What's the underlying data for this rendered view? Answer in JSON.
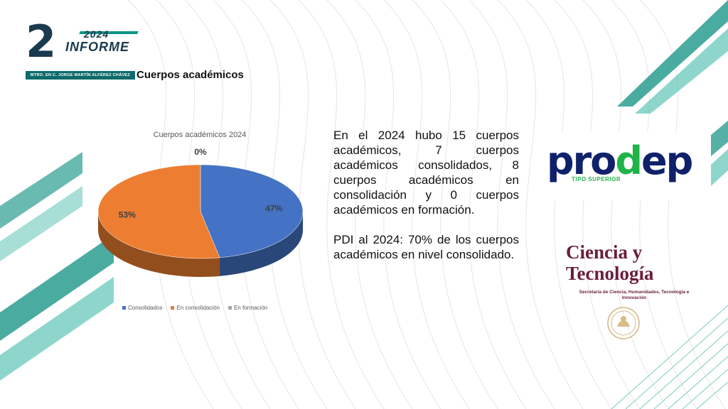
{
  "header": {
    "logo_number": "2",
    "logo_year": "2024",
    "logo_word": "INFORME",
    "logo_subtitle": "MTRO. EN C. JORGE MARTÍN ALFÉREZ CHÁVEZ",
    "section_title": "Cuerpos académicos"
  },
  "chart_data": {
    "type": "pie",
    "style": "3d",
    "title": "Cuerpos académicos 2024",
    "categories": [
      "Consolidados",
      "En consolidación",
      "En formación"
    ],
    "values": [
      47,
      53,
      0
    ],
    "data_labels": [
      "47%",
      "53%",
      "0%"
    ],
    "colors": [
      "#4472c4",
      "#ed7d31",
      "#a5a5a5"
    ],
    "legend_position": "bottom"
  },
  "body": {
    "paragraph_1": "En el 2024 hubo 15 cuerpos académicos, 7 cuerpos académicos consolidados, 8 cuerpos académicos en consolidación y 0 cuerpos académicos en formación.",
    "paragraph_2": "PDI al 2024: 70% de los cuerpos académicos en nivel consolidado."
  },
  "logos": {
    "prodep_part1": "pro",
    "prodep_part2": "d",
    "prodep_part3": "ep",
    "prodep_sub": "TIPO SUPERIOR",
    "ciencia_line1": "Ciencia y",
    "ciencia_line2": "Tecnología",
    "ciencia_sub": "Secretaría de Ciencia, Humanidades, Tecnología e Innovación"
  }
}
